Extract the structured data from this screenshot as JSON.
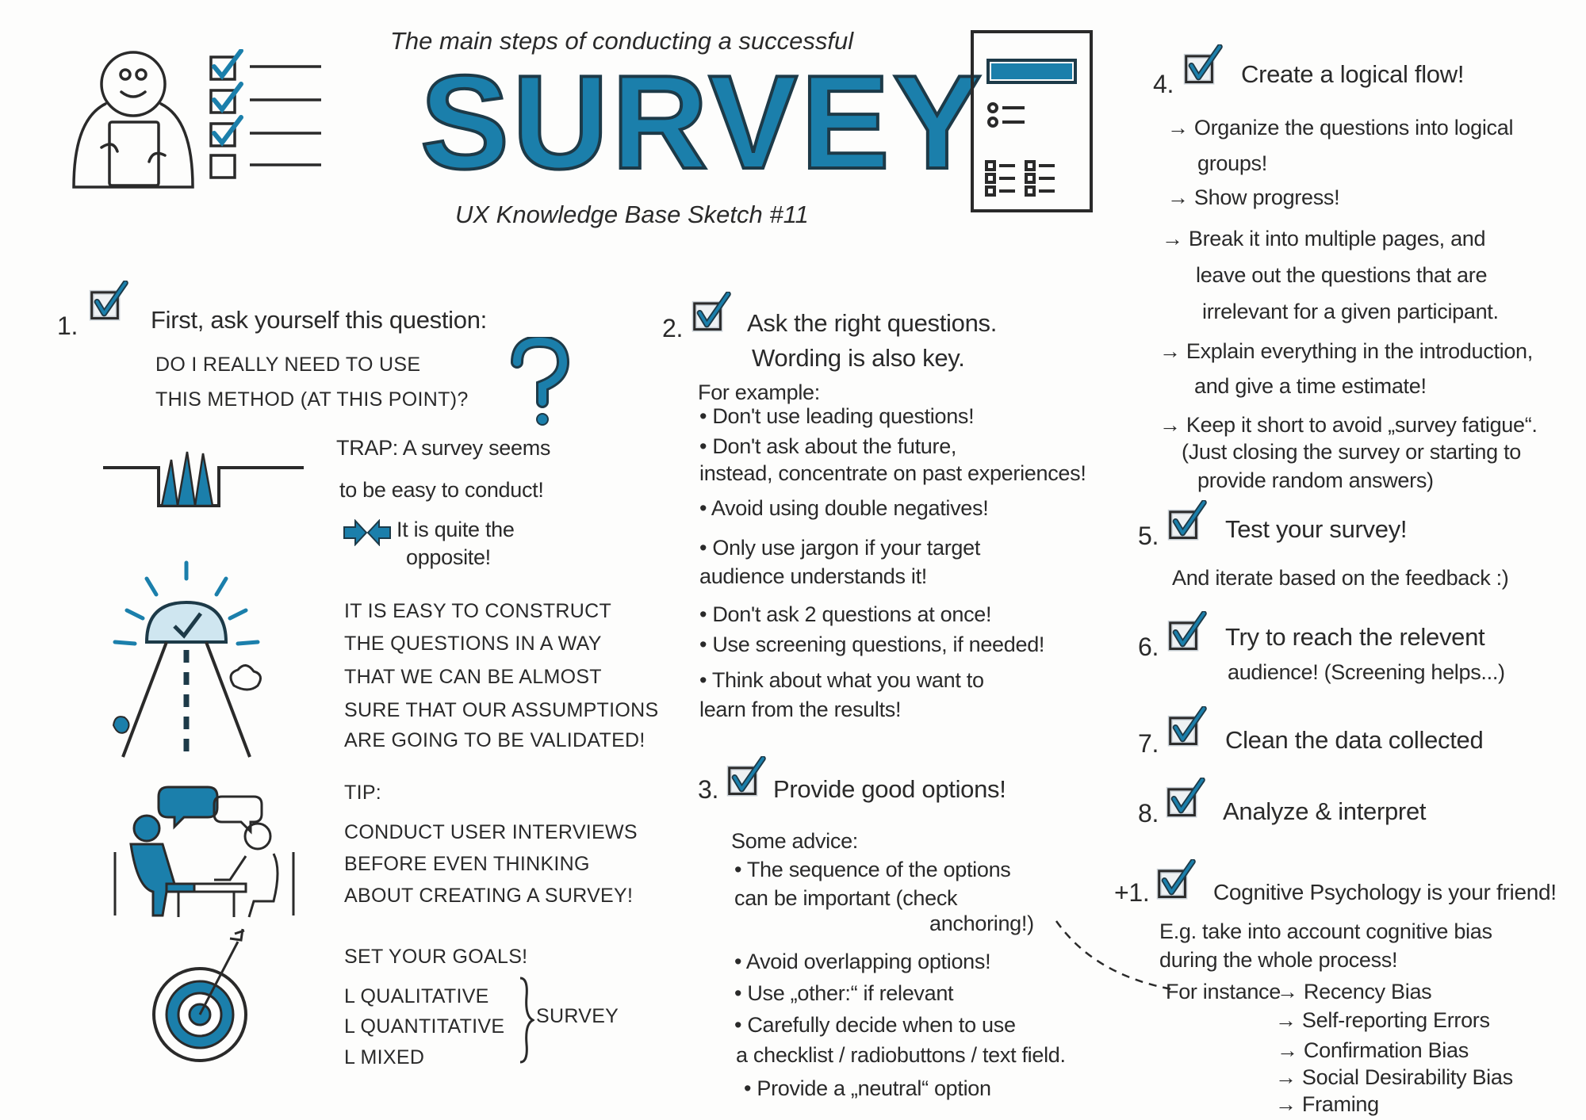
{
  "header": {
    "subtitle": "The main steps of conducting a successful",
    "title": "SURVEY",
    "caption": "UX Knowledge Base Sketch #11"
  },
  "accent_color": "#1b7fab",
  "ink_color": "#2a2a2a",
  "step1": {
    "number": "1.",
    "title": "First, ask yourself this question:",
    "question": [
      "DO I REALLY NEED TO USE",
      "THIS METHOD (AT THIS POINT)?"
    ],
    "trap": [
      "TRAP: A survey seems",
      "to be easy to conduct!"
    ],
    "opposite": [
      "It is quite the",
      "opposite!"
    ],
    "construct": [
      "IT IS EASY TO CONSTRUCT",
      "THE QUESTIONS IN A WAY",
      "THAT WE CAN BE ALMOST",
      "SURE THAT OUR ASSUMPTIONS",
      "ARE GOING TO BE VALIDATED!"
    ],
    "tip": [
      "TIP:",
      "CONDUCT USER INTERVIEWS",
      "BEFORE EVEN THINKING",
      "ABOUT CREATING A SURVEY!"
    ],
    "goals": [
      "SET YOUR GOALS!",
      "L QUALITATIVE",
      "L QUANTITATIVE",
      "L MIXED"
    ],
    "goals_brace": "SURVEY"
  },
  "step2": {
    "number": "2.",
    "title": [
      "Ask the right questions.",
      "Wording is also key."
    ],
    "intro": "For example:",
    "bullets": [
      "• Don't use leading questions!",
      "• Don't ask about the future,",
      "  instead, concentrate on past experiences!",
      "• Avoid using double negatives!",
      "• Only use jargon if your target",
      "  audience understands it!",
      "• Don't ask 2 questions at once!",
      "• Use screening questions, if needed!",
      "• Think about what you want to",
      "  learn from the results!"
    ]
  },
  "step3": {
    "number": "3.",
    "title": "Provide good options!",
    "intro": "Some advice:",
    "bullets": [
      "• The sequence of the options",
      "  can be important (check",
      "anchoring!)",
      "• Avoid overlapping options!",
      "• Use „other:“ if relevant",
      "• Carefully decide when to use",
      "a checklist / radiobuttons / text field.",
      "• Provide a „neutral“ option"
    ]
  },
  "step4": {
    "number": "4.",
    "title": "Create a logical flow!",
    "lines": [
      "→ Organize the questions into logical",
      "groups!",
      "→ Show progress!",
      "→ Break it into multiple pages, and",
      "leave out the questions that are",
      "irrelevant for a given participant.",
      "→ Explain everything in the introduction,",
      "and give a time estimate!",
      "→ Keep it short to avoid „survey fatigue“.",
      "(Just closing the survey or starting to",
      "provide random answers)"
    ]
  },
  "step5": {
    "number": "5.",
    "title": "Test your survey!",
    "line": "And iterate based on the feedback :)"
  },
  "step6": {
    "number": "6.",
    "title": "Try to reach the relevent",
    "line": "audience! (Screening helps...)"
  },
  "step7": {
    "number": "7.",
    "title": "Clean the data collected"
  },
  "step8": {
    "number": "8.",
    "title": "Analyze & interpret"
  },
  "bonus": {
    "number": "+1.",
    "title": "Cognitive Psychology is your friend!",
    "lines": [
      "E.g. take into account cognitive bias",
      "during the whole process!"
    ],
    "for_instance": "For instance",
    "biases": [
      "→ Recency Bias",
      "→ Self-reporting Errors",
      "→ Confirmation Bias",
      "→ Social Desirability Bias",
      "→ Framing"
    ]
  }
}
